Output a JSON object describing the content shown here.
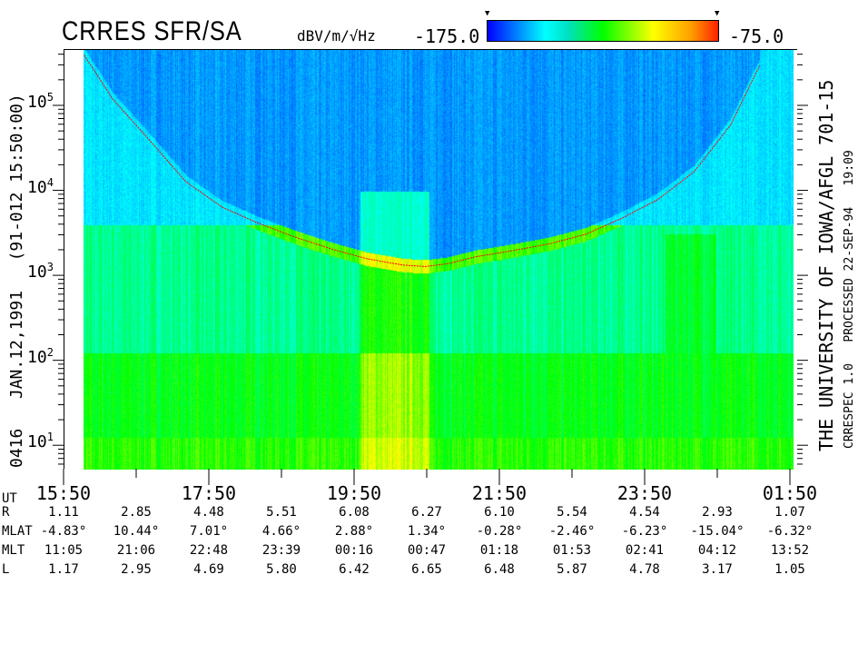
{
  "header": {
    "title": "CRRES SFR/SA",
    "units": "dBV/m/√Hz",
    "colorbar_min": "-175.0",
    "colorbar_max": "-75.0",
    "colorbar_colors": [
      "#0000ff",
      "#00ffff",
      "#00ff00",
      "#ffff00",
      "#ffa000",
      "#ff2000"
    ]
  },
  "left_label": "0416   JAN.12,1991   (91-012 15:50:00)",
  "right_label_1": "THE UNIVERSITY OF IOWA/AFGL 701-15",
  "right_label_2": "CRRESPEC 1.0   PROCESSED 22-SEP-94   19:09",
  "chart_data": {
    "type": "heatmap",
    "title": "CRRES SFR/SA",
    "colorbar_label": "dBV/m/√Hz",
    "zlim": [
      -175.0,
      -75.0
    ],
    "y_scale": "log",
    "ylim": [
      5.3,
      460000
    ],
    "y_ticks": [
      {
        "value": 10,
        "base": "10",
        "exp": "1"
      },
      {
        "value": 100,
        "base": "10",
        "exp": "2"
      },
      {
        "value": 1000,
        "base": "10",
        "exp": "3"
      },
      {
        "value": 10000,
        "base": "10",
        "exp": "4"
      },
      {
        "value": 100000,
        "base": "10",
        "exp": "5"
      }
    ],
    "x_ticks": [
      "15:50",
      "17:50",
      "19:50",
      "21:50",
      "23:50",
      "01:50"
    ],
    "x_range_hours": [
      15.83,
      25.83
    ],
    "gyrofrequency_curve": {
      "color": "#ff0000",
      "points": [
        [
          16.1,
          400000
        ],
        [
          16.5,
          120000
        ],
        [
          17.0,
          40000
        ],
        [
          17.5,
          13000
        ],
        [
          18.0,
          6500
        ],
        [
          18.5,
          4200
        ],
        [
          19.0,
          2900
        ],
        [
          19.5,
          2100
        ],
        [
          20.0,
          1600
        ],
        [
          20.5,
          1350
        ],
        [
          20.8,
          1300
        ],
        [
          21.1,
          1400
        ],
        [
          21.5,
          1700
        ],
        [
          22.0,
          2000
        ],
        [
          22.5,
          2400
        ],
        [
          23.0,
          3100
        ],
        [
          23.5,
          4800
        ],
        [
          24.0,
          8000
        ],
        [
          24.5,
          17000
        ],
        [
          25.0,
          60000
        ],
        [
          25.4,
          300000
        ]
      ]
    },
    "grid": false
  },
  "ephemeris": {
    "row_labels": [
      "UT",
      "R",
      "MLAT",
      "MLT",
      "L"
    ],
    "R": [
      "1.11",
      "2.85",
      "4.48",
      "5.51",
      "6.08",
      "6.27",
      "6.10",
      "5.54",
      "4.54",
      "2.93",
      "1.07"
    ],
    "MLAT": [
      "-4.83°",
      "10.44°",
      "7.01°",
      "4.66°",
      "2.88°",
      "1.34°",
      "-0.28°",
      "-2.46°",
      "-6.23°",
      "-15.04°",
      "-6.32°"
    ],
    "MLT": [
      "11:05",
      "21:06",
      "22:48",
      "23:39",
      "00:16",
      "00:47",
      "01:18",
      "01:53",
      "02:41",
      "04:12",
      "13:52"
    ],
    "L": [
      "1.17",
      "2.95",
      "4.69",
      "5.80",
      "6.42",
      "6.65",
      "6.48",
      "5.87",
      "4.78",
      "3.17",
      "1.05"
    ]
  }
}
